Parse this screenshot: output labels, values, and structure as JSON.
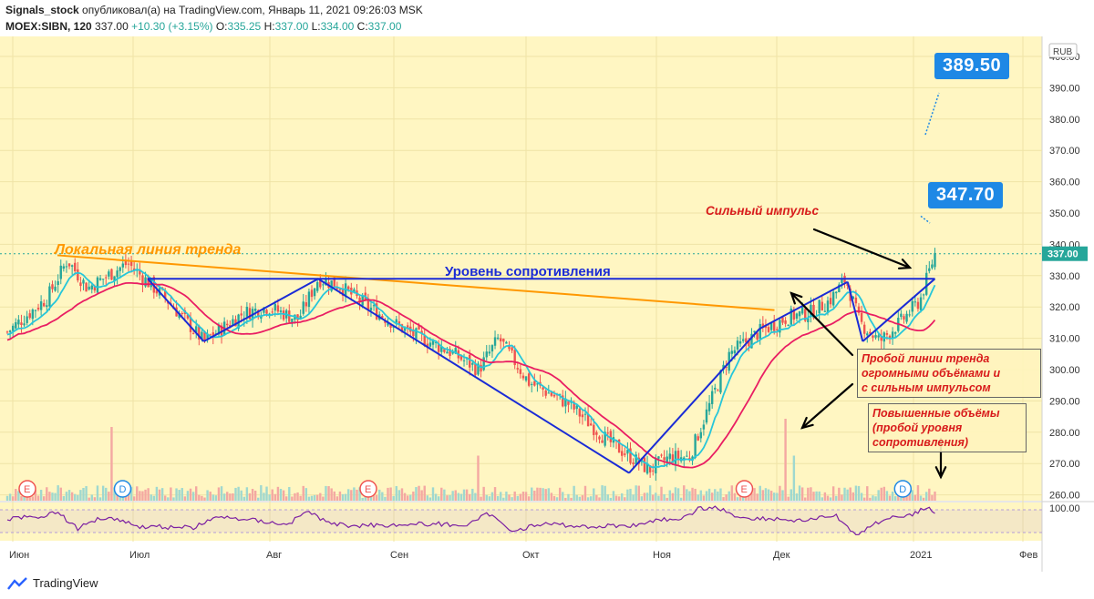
{
  "header": {
    "author": "Signals_stock",
    "published_text": "опубликовал(а) на TradingView.com, Январь 11, 2021 09:26:03 MSK",
    "symbol": "MOEX:SIBN, 120",
    "last": "337.00",
    "change": "+10.30 (+3.15%)",
    "o_label": "O:",
    "o_value": "335.25",
    "h_label": "H:",
    "h_value": "337.00",
    "l_label": "L:",
    "l_value": "334.00",
    "c_label": "C:",
    "c_value": "337.00"
  },
  "footer": {
    "brand": "TradingView"
  },
  "annotations": {
    "target_1": "389.50",
    "target_2": "347.70",
    "impulse": "Сильный импульс",
    "trendline_label": "Локальная линия тренда",
    "resistance_label": "Уровень сопротивления",
    "breakout_box": [
      "Пробой линии тренда",
      "огромными объёмами и",
      "с сильным импульсом"
    ],
    "volume_box": [
      "Повышенные объёмы",
      "(пробой уровня",
      "сопротивления)"
    ]
  },
  "colors": {
    "background": "#fff6c2",
    "price_axis_bg": "#ffffff",
    "candle_up": "#26a69a",
    "candle_down": "#ef5350",
    "ma_fast": "#26c6da",
    "ma_slow": "#e91e63",
    "trendline": "#ff9800",
    "channel": "#1a2bd6",
    "callout": "#1e88e5",
    "rsi": "#7b1fa2"
  },
  "chart_data": {
    "type": "candlestick",
    "currency": "RUB",
    "ylim": [
      255,
      405
    ],
    "y_ticks": [
      400,
      390,
      380,
      370,
      360,
      350,
      340,
      330,
      320,
      310,
      300,
      290,
      280,
      270,
      260
    ],
    "x_ticks": [
      "Июн",
      "Июл",
      "Авг",
      "Сен",
      "Окт",
      "Ноя",
      "Дек",
      "2021",
      "Фев"
    ],
    "last_price": 337.0,
    "price_path": [
      {
        "t": 0.0,
        "v": 312
      },
      {
        "t": 0.04,
        "v": 323
      },
      {
        "t": 0.06,
        "v": 335
      },
      {
        "t": 0.08,
        "v": 326
      },
      {
        "t": 0.12,
        "v": 334
      },
      {
        "t": 0.16,
        "v": 322
      },
      {
        "t": 0.196,
        "v": 309
      },
      {
        "t": 0.235,
        "v": 318
      },
      {
        "t": 0.26,
        "v": 320
      },
      {
        "t": 0.29,
        "v": 316
      },
      {
        "t": 0.31,
        "v": 329
      },
      {
        "t": 0.33,
        "v": 327
      },
      {
        "t": 0.36,
        "v": 320
      },
      {
        "t": 0.4,
        "v": 312
      },
      {
        "t": 0.44,
        "v": 306
      },
      {
        "t": 0.47,
        "v": 300
      },
      {
        "t": 0.49,
        "v": 310
      },
      {
        "t": 0.52,
        "v": 296
      },
      {
        "t": 0.56,
        "v": 289
      },
      {
        "t": 0.6,
        "v": 277
      },
      {
        "t": 0.64,
        "v": 268
      },
      {
        "t": 0.66,
        "v": 272
      },
      {
        "t": 0.68,
        "v": 272
      },
      {
        "t": 0.72,
        "v": 305
      },
      {
        "t": 0.75,
        "v": 312
      },
      {
        "t": 0.78,
        "v": 317
      },
      {
        "t": 0.8,
        "v": 318
      },
      {
        "t": 0.82,
        "v": 322
      },
      {
        "t": 0.836,
        "v": 329
      },
      {
        "t": 0.85,
        "v": 315
      },
      {
        "t": 0.87,
        "v": 309
      },
      {
        "t": 0.89,
        "v": 315
      },
      {
        "t": 0.91,
        "v": 322
      },
      {
        "t": 0.925,
        "v": 337
      }
    ],
    "indicators": [
      {
        "name": "MA fast",
        "color": "#26c6da"
      },
      {
        "name": "MA slow",
        "color": "#e91e63"
      }
    ],
    "resistance_level": 329,
    "trendline": {
      "from": [
        0.05,
        336.5
      ],
      "to": [
        0.765,
        319
      ]
    },
    "channel_points": [
      [
        0.14,
        329
      ],
      [
        0.196,
        309
      ],
      [
        0.31,
        329
      ],
      [
        0.62,
        267
      ],
      [
        0.75,
        313
      ],
      [
        0.838,
        328
      ],
      [
        0.853,
        309
      ],
      [
        0.925,
        329
      ]
    ],
    "volume_spikes": [
      [
        0.104,
        0.9
      ],
      [
        0.775,
        1.0
      ],
      [
        0.785,
        0.55
      ],
      [
        0.47,
        0.55
      ],
      [
        0.935,
        0.4
      ]
    ],
    "event_markers": [
      {
        "t": 0.02,
        "label": "E"
      },
      {
        "t": 0.115,
        "label": "D"
      },
      {
        "t": 0.36,
        "label": "E"
      },
      {
        "t": 0.735,
        "label": "E"
      },
      {
        "t": 0.893,
        "label": "D"
      }
    ],
    "rsi_axis_label": "100.00"
  }
}
